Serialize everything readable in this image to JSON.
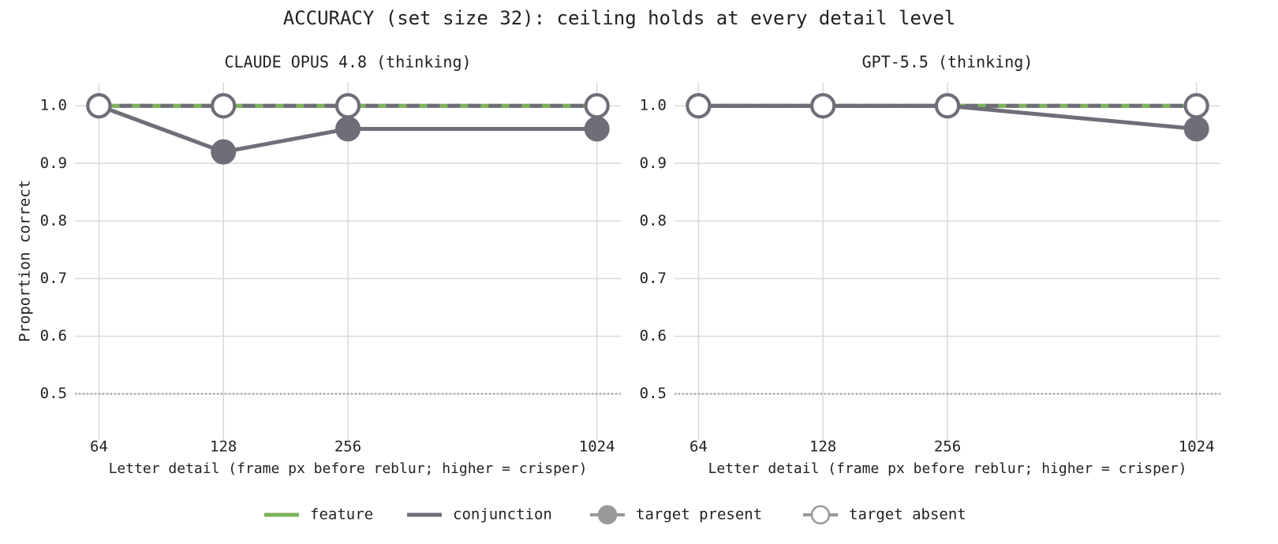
{
  "title": "ACCURACY (set size 32): ceiling holds at every detail level",
  "legend": [
    {
      "label": "feature",
      "color": "#7cb25b",
      "style": "line"
    },
    {
      "label": "conjunction",
      "color": "#6e6e78",
      "style": "line"
    },
    {
      "label": "target present",
      "color": "#6e6e78",
      "style": "filled"
    },
    {
      "label": "target absent",
      "color": "#6e6e78",
      "style": "hollow"
    }
  ],
  "chart_data": [
    {
      "type": "line",
      "title": "CLAUDE OPUS 4.8  (thinking)",
      "xlabel": "Letter detail (frame px before reblur; higher = crisper)",
      "ylabel": "Proportion correct",
      "x": [
        64,
        128,
        256,
        1024
      ],
      "xlim": [
        56,
        1170
      ],
      "xticks": [
        64,
        128,
        256,
        1024
      ],
      "log_x": 2,
      "ylim": [
        0.42,
        1.04
      ],
      "yticks": [
        {
          "value": 1,
          "label": "1.0"
        },
        0.9,
        0.8,
        0.7,
        0.6,
        0.5
      ],
      "grid": true,
      "chance": 0.5,
      "series": [
        {
          "color": "#7cb25b",
          "marker": "filled",
          "dash": false,
          "values": [
            1,
            1,
            1,
            1
          ]
        },
        {
          "color": "#7cb25b",
          "marker": "hollow",
          "dash": false,
          "values": [
            1,
            1,
            1,
            1
          ]
        },
        {
          "color": "#6e6e78",
          "marker": "filled",
          "dash": false,
          "values": [
            1,
            0.92,
            0.96,
            0.96
          ]
        },
        {
          "color": "#6e6e78",
          "marker": "hollow",
          "dash": true,
          "values": [
            1,
            1,
            1,
            1
          ]
        }
      ]
    },
    {
      "type": "line",
      "title": "GPT-5.5  (thinking)",
      "xlabel": "Letter detail (frame px before reblur; higher = crisper)",
      "x": [
        64,
        128,
        256,
        1024
      ],
      "xlim": [
        56,
        1170
      ],
      "xticks": [
        64,
        128,
        256,
        1024
      ],
      "log_x": 2,
      "ylim": [
        0.42,
        1.04
      ],
      "yticks": [
        {
          "value": 1,
          "label": "1.0"
        },
        0.9,
        0.8,
        0.7,
        0.6,
        0.5
      ],
      "grid": true,
      "chance": 0.5,
      "series": [
        {
          "color": "#7cb25b",
          "marker": "filled",
          "dash": false,
          "values": [
            1,
            1,
            1,
            1
          ]
        },
        {
          "color": "#7cb25b",
          "marker": "hollow",
          "dash": false,
          "values": [
            1,
            1,
            1,
            1
          ]
        },
        {
          "color": "#6e6e78",
          "marker": "filled",
          "dash": false,
          "values": [
            1,
            1,
            1,
            0.96
          ]
        },
        {
          "color": "#6e6e78",
          "marker": "hollow",
          "dash": true,
          "values": [
            1,
            1,
            1,
            1
          ]
        }
      ]
    }
  ]
}
